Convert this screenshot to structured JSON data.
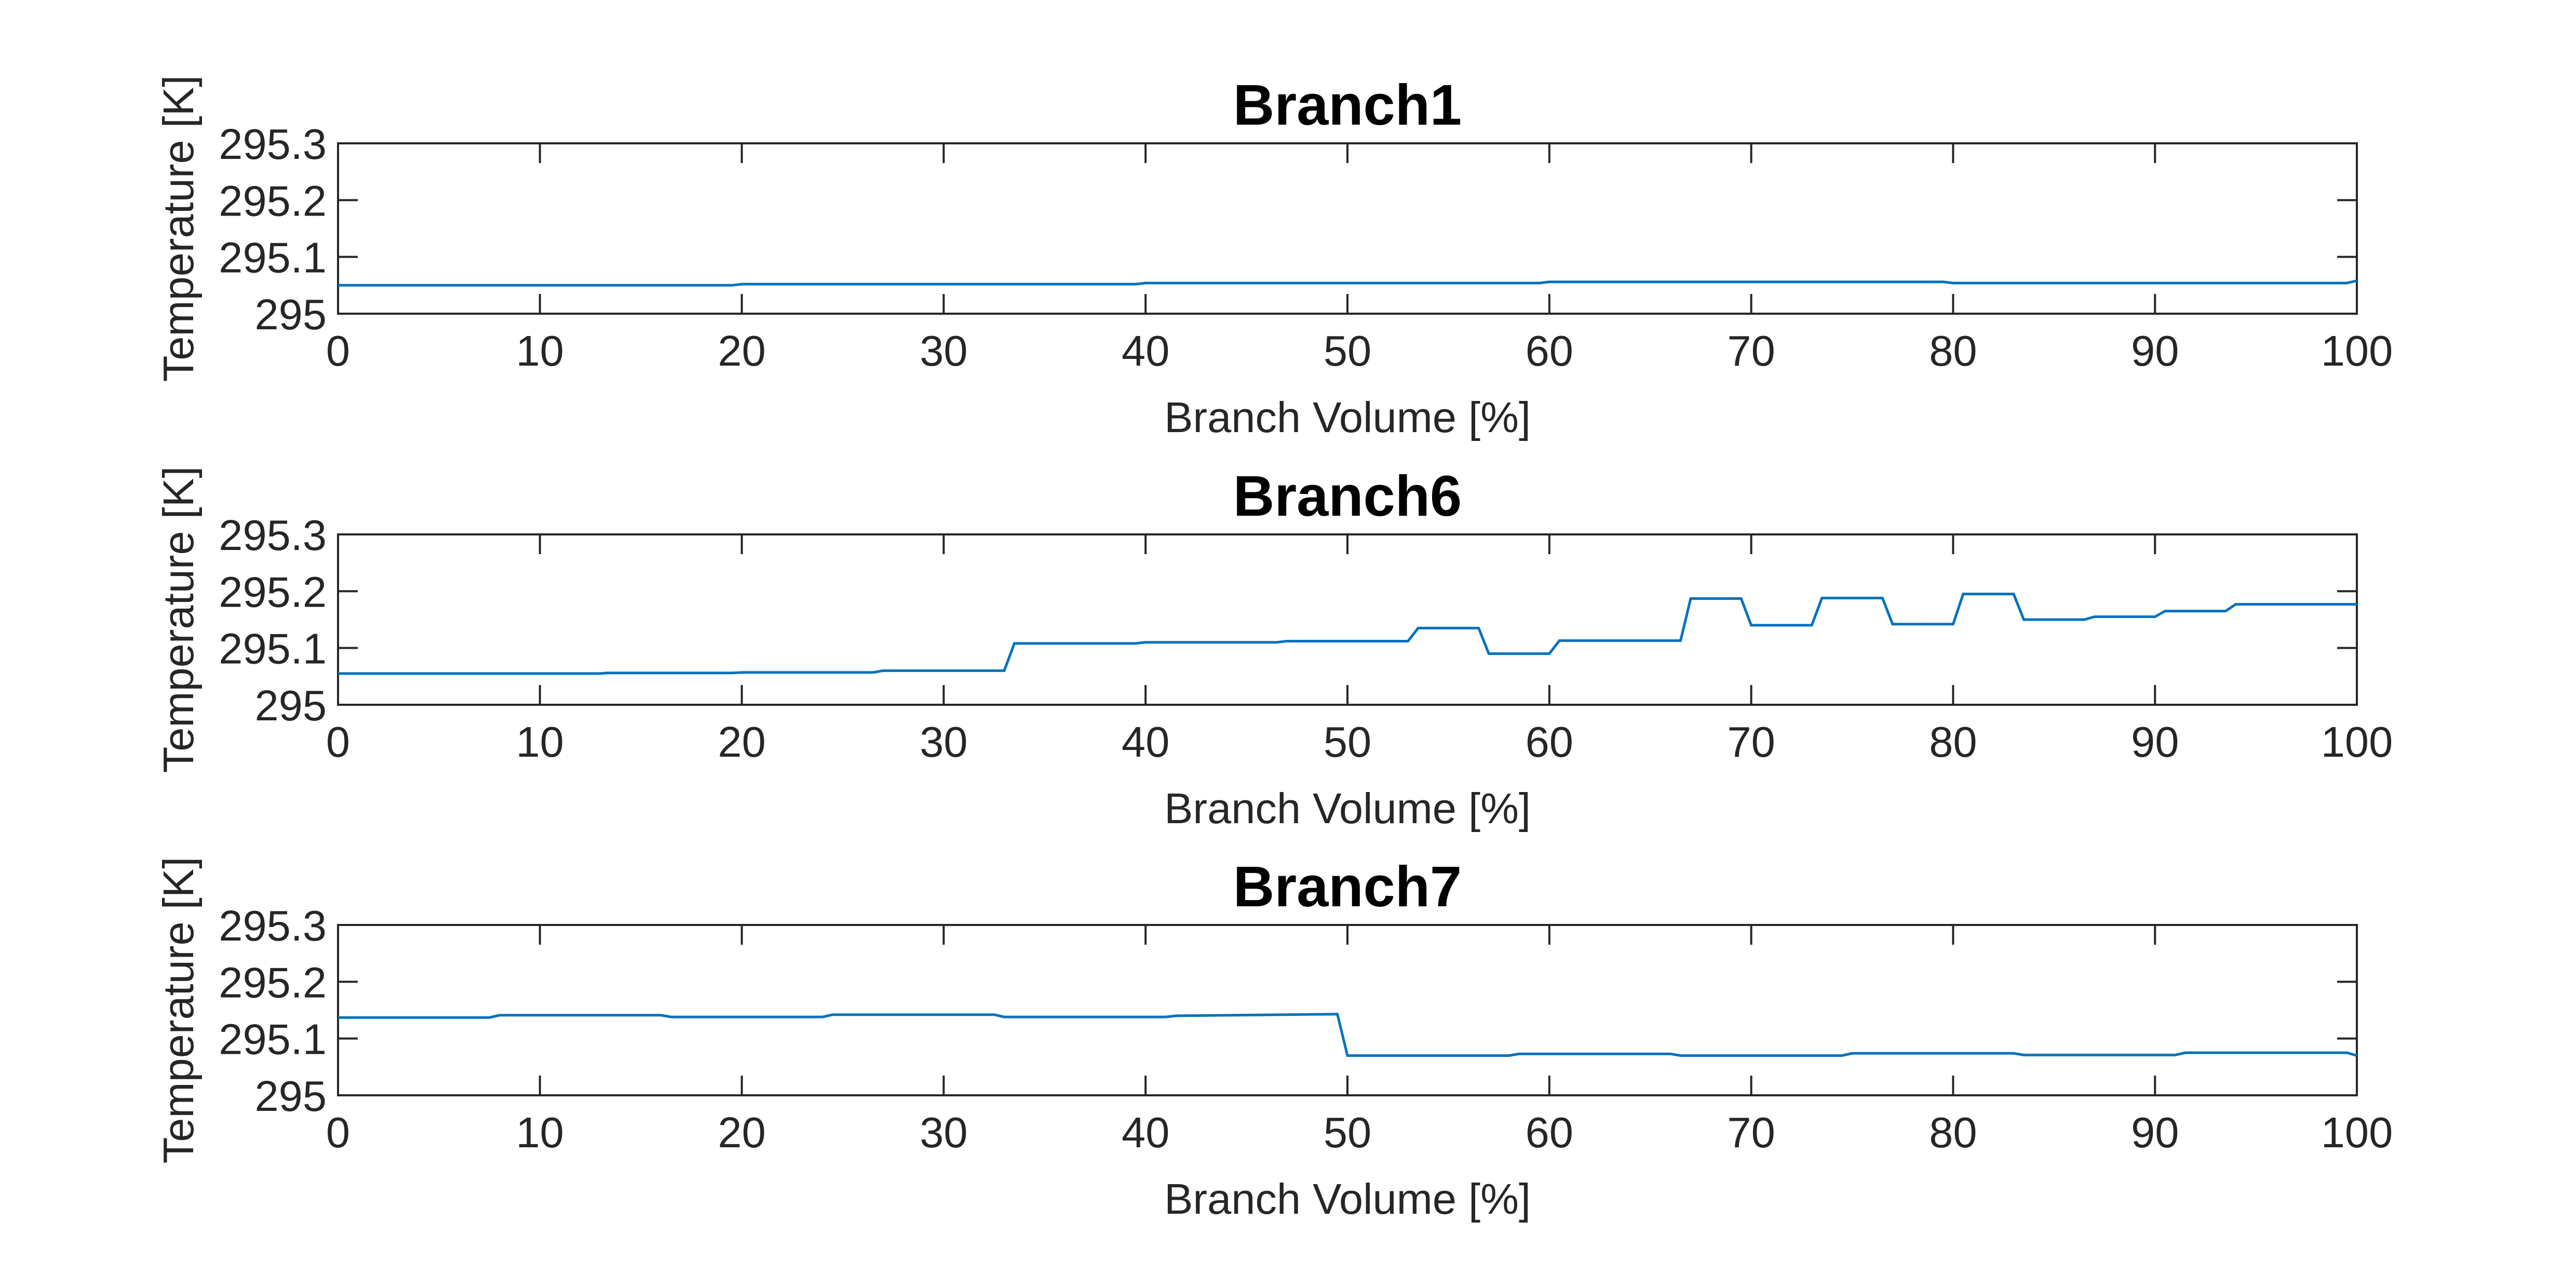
{
  "figure": {
    "background": "#ffffff",
    "axes_color": "#262626"
  },
  "chart_data": [
    {
      "type": "line",
      "title": "Branch1",
      "xlabel": "Branch Volume [%]",
      "ylabel": "Temperature [K]",
      "xlim": [
        0,
        100
      ],
      "ylim": [
        295,
        295.3
      ],
      "xticks": [
        0,
        10,
        20,
        30,
        40,
        50,
        60,
        70,
        80,
        90,
        100
      ],
      "xtick_labels": [
        "0",
        "10",
        "20",
        "30",
        "40",
        "50",
        "60",
        "70",
        "80",
        "90",
        "100"
      ],
      "yticks": [
        295,
        295.1,
        295.2,
        295.3
      ],
      "ytick_labels": [
        "295",
        "295.1",
        "295.2",
        "295.3"
      ],
      "grid": false,
      "legend": "none",
      "series": [
        {
          "color": "#0072BD",
          "x": [
            0,
            19.5,
            20,
            39.5,
            40,
            59.5,
            60,
            79.5,
            80,
            99.5,
            100
          ],
          "y": [
            295.05,
            295.05,
            295.052,
            295.052,
            295.054,
            295.054,
            295.056,
            295.056,
            295.054,
            295.054,
            295.058
          ]
        }
      ]
    },
    {
      "type": "line",
      "title": "Branch6",
      "xlabel": "Branch Volume [%]",
      "ylabel": "Temperature [K]",
      "xlim": [
        0,
        100
      ],
      "ylim": [
        295,
        295.3
      ],
      "xticks": [
        0,
        10,
        20,
        30,
        40,
        50,
        60,
        70,
        80,
        90,
        100
      ],
      "xtick_labels": [
        "0",
        "10",
        "20",
        "30",
        "40",
        "50",
        "60",
        "70",
        "80",
        "90",
        "100"
      ],
      "yticks": [
        295,
        295.1,
        295.2,
        295.3
      ],
      "ytick_labels": [
        "295",
        "295.1",
        "295.2",
        "295.3"
      ],
      "grid": false,
      "legend": "none",
      "series": [
        {
          "color": "#0072BD",
          "x": [
            0,
            13,
            13.3,
            19.5,
            20,
            26.5,
            27,
            33,
            33.5,
            39.5,
            40,
            46.5,
            47,
            53,
            53.5,
            56.5,
            57,
            60,
            60.5,
            66.5,
            67,
            69.5,
            70,
            73,
            73.5,
            76.5,
            77,
            80,
            80.5,
            83,
            83.5,
            86.5,
            87,
            90,
            90.5,
            93.5,
            94,
            100
          ],
          "y": [
            295.055,
            295.055,
            295.056,
            295.056,
            295.057,
            295.057,
            295.06,
            295.06,
            295.108,
            295.108,
            295.11,
            295.11,
            295.112,
            295.112,
            295.135,
            295.135,
            295.09,
            295.09,
            295.113,
            295.113,
            295.187,
            295.187,
            295.14,
            295.14,
            295.188,
            295.188,
            295.142,
            295.142,
            295.195,
            295.195,
            295.15,
            295.15,
            295.155,
            295.155,
            295.165,
            295.165,
            295.177,
            295.177
          ]
        }
      ]
    },
    {
      "type": "line",
      "title": "Branch7",
      "xlabel": "Branch Volume [%]",
      "ylabel": "Temperature [K]",
      "xlim": [
        0,
        100
      ],
      "ylim": [
        295,
        295.3
      ],
      "xticks": [
        0,
        10,
        20,
        30,
        40,
        50,
        60,
        70,
        80,
        90,
        100
      ],
      "xtick_labels": [
        "0",
        "10",
        "20",
        "30",
        "40",
        "50",
        "60",
        "70",
        "80",
        "90",
        "100"
      ],
      "yticks": [
        295,
        295.1,
        295.2,
        295.3
      ],
      "ytick_labels": [
        "295",
        "295.1",
        "295.2",
        "295.3"
      ],
      "grid": false,
      "legend": "none",
      "series": [
        {
          "color": "#0072BD",
          "x": [
            0,
            7.5,
            8,
            16,
            16.5,
            24,
            24.5,
            32.5,
            33,
            41,
            41.5,
            49.5,
            50,
            58,
            58.5,
            66,
            66.5,
            74.5,
            75,
            83,
            83.5,
            91,
            91.5,
            99.5,
            100
          ],
          "y": [
            295.137,
            295.137,
            295.141,
            295.141,
            295.138,
            295.138,
            295.142,
            295.142,
            295.138,
            295.138,
            295.14,
            295.143,
            295.07,
            295.07,
            295.073,
            295.073,
            295.07,
            295.07,
            295.074,
            295.074,
            295.071,
            295.071,
            295.075,
            295.075,
            295.07
          ]
        }
      ]
    }
  ]
}
